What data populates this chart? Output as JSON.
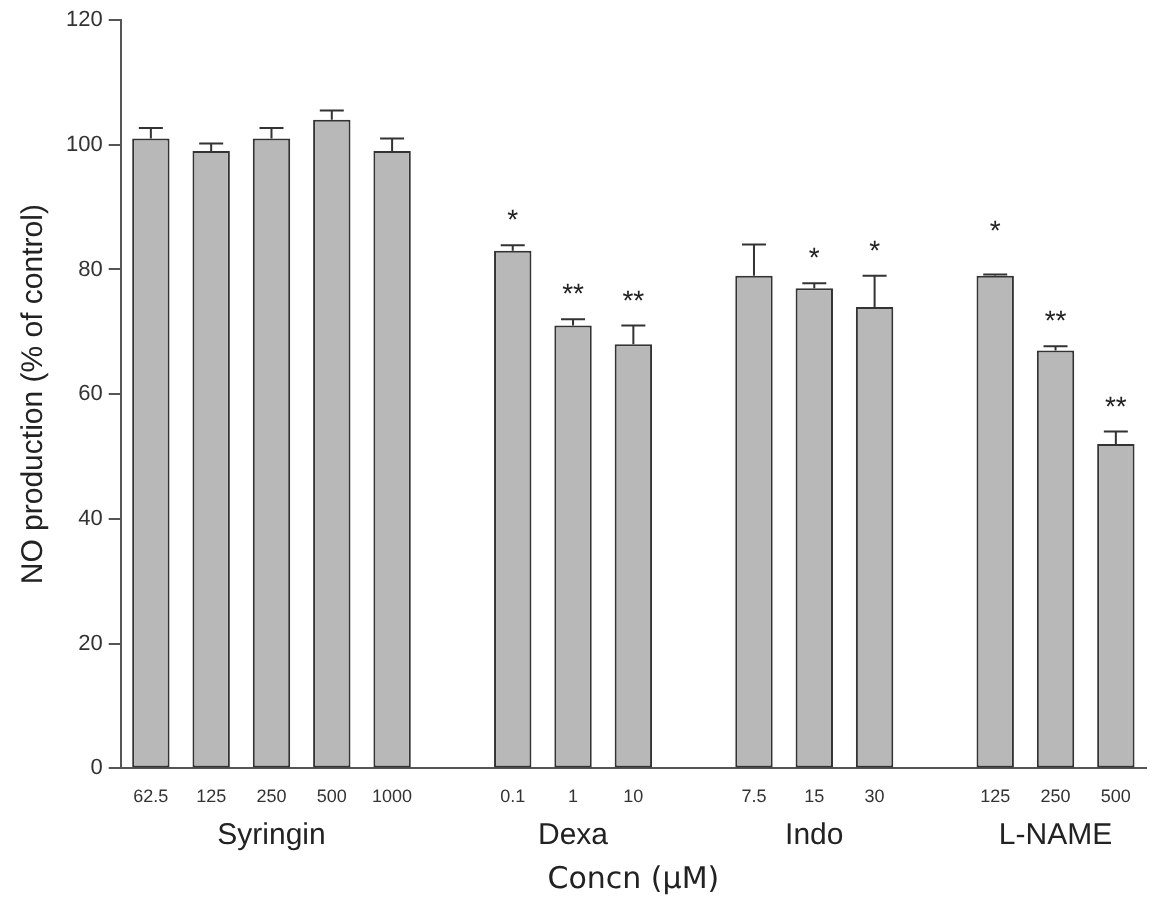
{
  "chart_data": {
    "type": "bar",
    "xlabel": "Concn (μM)",
    "ylabel": "NO production (% of control)",
    "categories": [
      "62.5",
      "125",
      "250",
      "500",
      "1000",
      null,
      "0.1",
      "1",
      "10",
      null,
      "7.5",
      "15",
      "30",
      null,
      "125",
      "250",
      "500"
    ],
    "series": [
      {
        "color": "#b8b8b8",
        "values": [
          101,
          99,
          101,
          104,
          99,
          null,
          83,
          71,
          68,
          null,
          79,
          77,
          74,
          null,
          79,
          67,
          52
        ],
        "errors": [
          1.7,
          1.2,
          1.7,
          1.5,
          2,
          null,
          0.9,
          1,
          3,
          null,
          5,
          0.8,
          5,
          null,
          0.2,
          0.7,
          2
        ],
        "value_labels": [
          null,
          null,
          null,
          null,
          null,
          null,
          "*",
          "**",
          "**",
          null,
          null,
          "*",
          "*",
          null,
          "*",
          "**",
          "**"
        ]
      }
    ],
    "annotations": [
      "Syringin",
      "Dexa",
      "Indo",
      "L-NAME"
    ],
    "ylim": [
      0,
      120
    ],
    "yticks": [
      0,
      20,
      40,
      60,
      80,
      100,
      120
    ],
    "grid": false,
    "legend": false
  }
}
